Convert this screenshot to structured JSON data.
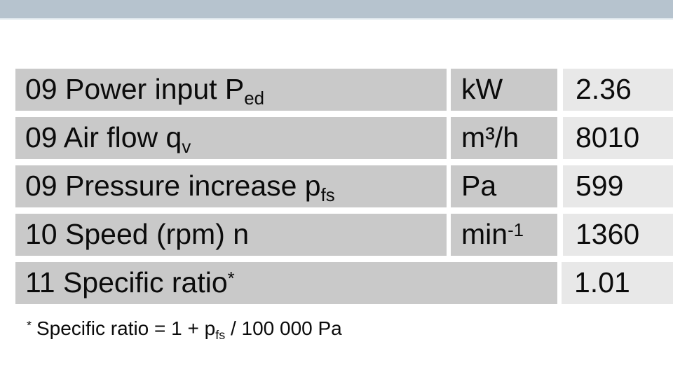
{
  "colors": {
    "top_bar": "#b6c3ce",
    "top_bar_edge": "#e2eaef",
    "cell": "#c9c9c9",
    "value_cell": "#e8e8e8",
    "text": "#0b0b0b",
    "page_bg": "#ffffff"
  },
  "table": {
    "rows": [
      {
        "label": "09 Power input P",
        "label_sub": "ed",
        "label_sup": "",
        "unit": "kW",
        "unit_sup": "",
        "value": "2.36"
      },
      {
        "label": "09 Air flow q",
        "label_sub": "v",
        "label_sup": "",
        "unit": "m³/h",
        "unit_sup": "",
        "value": "8010"
      },
      {
        "label": "09 Pressure increase p",
        "label_sub": "fs",
        "label_sup": "",
        "unit": "Pa",
        "unit_sup": "",
        "value": "599"
      },
      {
        "label": "10 Speed (rpm) n",
        "label_sub": "",
        "label_sup": "",
        "unit": "min",
        "unit_sup": "-1",
        "value": "1360"
      },
      {
        "label": "11 Specific ratio",
        "label_sub": "",
        "label_sup": "*",
        "unit": "",
        "unit_sup": "",
        "value": "1.01"
      }
    ]
  },
  "footnote": {
    "marker": "*",
    "text": "Specific ratio = 1 + p",
    "sub": "fs",
    "tail": " / 100 000 Pa"
  }
}
